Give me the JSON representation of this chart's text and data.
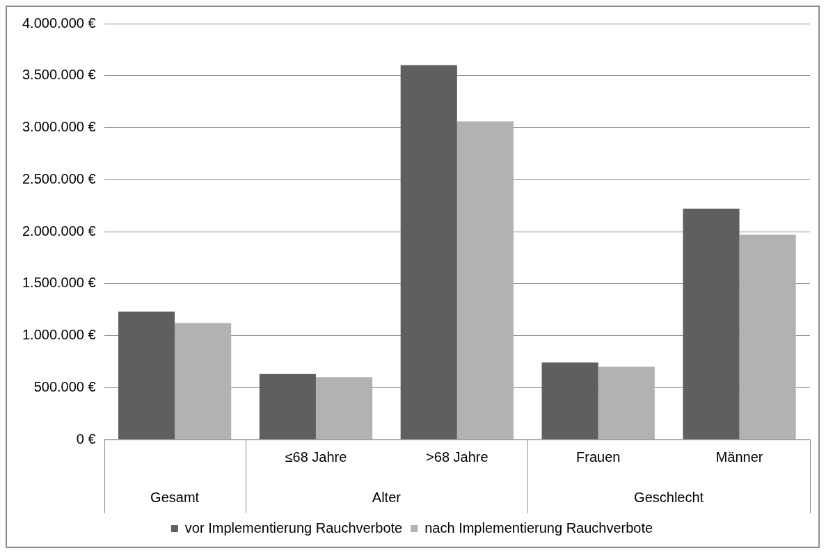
{
  "chart_data": {
    "type": "bar",
    "categories": [
      null,
      "≤68 Jahre",
      ">68 Jahre",
      "Frauen",
      "Männer"
    ],
    "series": [
      {
        "name": "vor Implementierung Rauchverbote",
        "color": "#5f5f5f",
        "values": [
          1230000,
          630000,
          3600000,
          740000,
          2220000
        ]
      },
      {
        "name": "nach Implementierung Rauchverbote",
        "color": "#b2b2b2",
        "values": [
          1120000,
          600000,
          3060000,
          700000,
          1970000
        ]
      }
    ],
    "annotations": [
      "Gesamt",
      "Alter",
      "Geschlecht"
    ],
    "ylim": [
      0,
      4000000
    ],
    "yticks": [
      {
        "value": 0,
        "label": "0 €"
      },
      {
        "value": 500000,
        "label": "500.000 €"
      },
      {
        "value": 1000000,
        "label": "1.000.000 €"
      },
      {
        "value": 1500000,
        "label": "1.500.000 €"
      },
      {
        "value": 2000000,
        "label": "2.000.000 €"
      },
      {
        "value": 2500000,
        "label": "2.500.000 €"
      },
      {
        "value": 3000000,
        "label": "3.000.000 €"
      },
      {
        "value": 3500000,
        "label": "3.500.000 €"
      },
      {
        "value": 4000000,
        "label": "4.000.000 €"
      }
    ],
    "grid": "y",
    "legend": "bottom"
  }
}
